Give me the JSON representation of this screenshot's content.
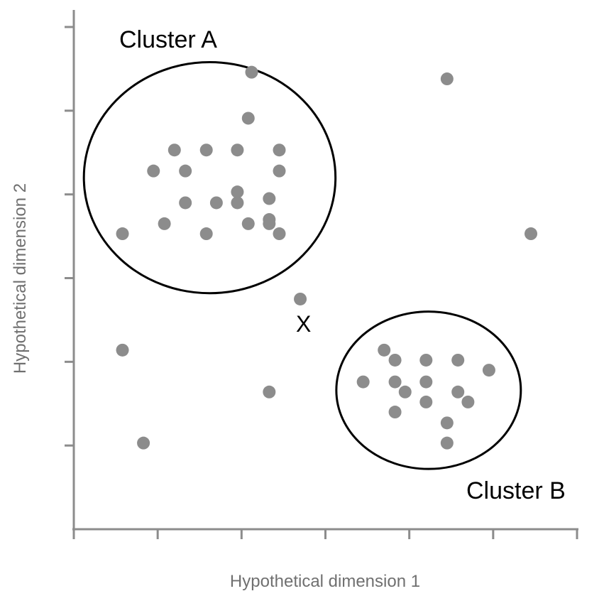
{
  "chart_data": {
    "type": "scatter",
    "title": "",
    "xlabel": "Hypothetical dimension 1",
    "ylabel": "Hypothetical dimension 2",
    "xlim": [
      0,
      6
    ],
    "ylim": [
      0,
      6
    ],
    "tick_labels": "none",
    "grid": false,
    "legend": "none",
    "colors": {
      "axis": "#8c8c8c",
      "points": "#8c8c8c",
      "ellipse": "#000000",
      "axis_title": "#707070"
    },
    "points": [
      {
        "x": 2.12,
        "y": 5.46
      },
      {
        "x": 2.08,
        "y": 4.91
      },
      {
        "x": 1.2,
        "y": 4.53
      },
      {
        "x": 0.95,
        "y": 4.28
      },
      {
        "x": 1.58,
        "y": 4.53
      },
      {
        "x": 1.95,
        "y": 4.53
      },
      {
        "x": 2.45,
        "y": 4.53
      },
      {
        "x": 2.45,
        "y": 4.28
      },
      {
        "x": 2.33,
        "y": 3.95
      },
      {
        "x": 2.33,
        "y": 3.7
      },
      {
        "x": 1.95,
        "y": 4.03
      },
      {
        "x": 1.95,
        "y": 3.9
      },
      {
        "x": 1.7,
        "y": 3.9
      },
      {
        "x": 1.33,
        "y": 3.9
      },
      {
        "x": 1.33,
        "y": 4.28
      },
      {
        "x": 1.08,
        "y": 3.65
      },
      {
        "x": 0.58,
        "y": 3.53
      },
      {
        "x": 1.58,
        "y": 3.53
      },
      {
        "x": 2.08,
        "y": 3.65
      },
      {
        "x": 2.33,
        "y": 3.65
      },
      {
        "x": 2.45,
        "y": 3.53
      },
      {
        "x": 4.45,
        "y": 5.38
      },
      {
        "x": 5.45,
        "y": 3.53
      },
      {
        "x": 2.7,
        "y": 2.75
      },
      {
        "x": 0.58,
        "y": 2.14
      },
      {
        "x": 2.33,
        "y": 1.64
      },
      {
        "x": 0.83,
        "y": 1.03
      },
      {
        "x": 3.7,
        "y": 2.14
      },
      {
        "x": 3.83,
        "y": 2.02
      },
      {
        "x": 4.2,
        "y": 2.02
      },
      {
        "x": 4.58,
        "y": 2.02
      },
      {
        "x": 4.95,
        "y": 1.9
      },
      {
        "x": 3.45,
        "y": 1.76
      },
      {
        "x": 3.83,
        "y": 1.76
      },
      {
        "x": 4.2,
        "y": 1.76
      },
      {
        "x": 3.95,
        "y": 1.64
      },
      {
        "x": 4.58,
        "y": 1.64
      },
      {
        "x": 4.2,
        "y": 1.52
      },
      {
        "x": 4.7,
        "y": 1.52
      },
      {
        "x": 3.83,
        "y": 1.4
      },
      {
        "x": 4.45,
        "y": 1.27
      },
      {
        "x": 4.45,
        "y": 1.03
      }
    ],
    "clusters": [
      {
        "label": "Cluster A",
        "center": [
          1.62,
          4.2
        ],
        "radius": [
          1.5,
          1.38
        ]
      },
      {
        "label": "Cluster B",
        "center": [
          4.23,
          1.66
        ],
        "radius": [
          1.1,
          0.94
        ]
      }
    ],
    "annotations": [
      {
        "text": "X",
        "x": 2.73,
        "y": 2.45
      }
    ]
  }
}
